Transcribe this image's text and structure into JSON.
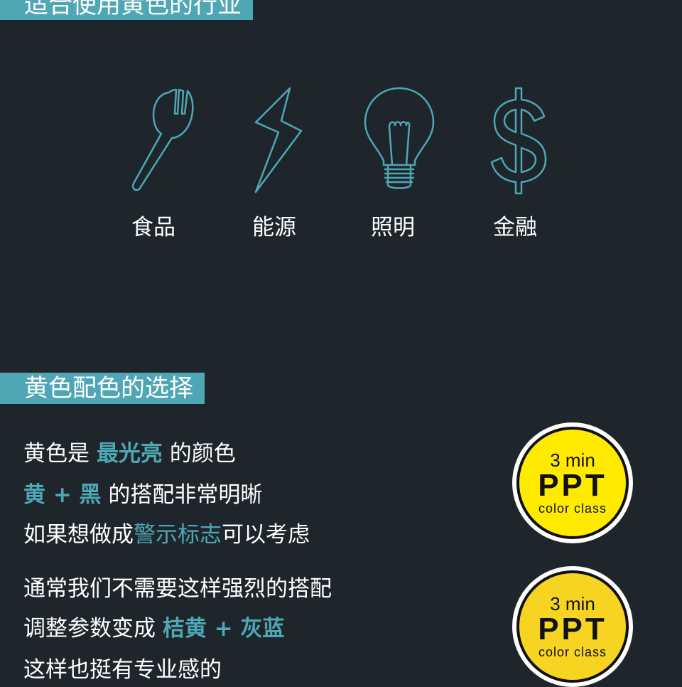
{
  "section1": {
    "title": "适合使用黄色的行业",
    "industries": [
      {
        "label": "食品",
        "icon": "fork-spoon-icon"
      },
      {
        "label": "能源",
        "icon": "lightning-icon"
      },
      {
        "label": "照明",
        "icon": "light-bulb-icon"
      },
      {
        "label": "金融",
        "icon": "dollar-sign-icon"
      }
    ]
  },
  "section2": {
    "title": "黄色配色的选择",
    "line1": {
      "a": "黄色是 ",
      "hl": "最光亮",
      "b": " 的颜色"
    },
    "line2": {
      "hl": "黄 + 黑",
      "b": " 的搭配非常明晰"
    },
    "line3": {
      "a": "如果想做成",
      "hl": "警示标志",
      "b": "可以考虑"
    },
    "line4": {
      "a": "通常我们不需要这样强烈的搭配"
    },
    "line5": {
      "a": "调整参数变成 ",
      "hl": "桔黄 + 灰蓝"
    },
    "line6": {
      "a": "这样也挺有专业感的"
    }
  },
  "badges": [
    {
      "min": "3 min",
      "ppt": "PPT",
      "cls": "color class",
      "color": "#ffea00"
    },
    {
      "min": "3 min",
      "ppt": "PPT",
      "cls": "color class",
      "color": "#f7d422"
    }
  ],
  "colors": {
    "background": "#1e262c",
    "accent": "#4fa6b5",
    "icon_stroke": "#4fa6b5"
  }
}
